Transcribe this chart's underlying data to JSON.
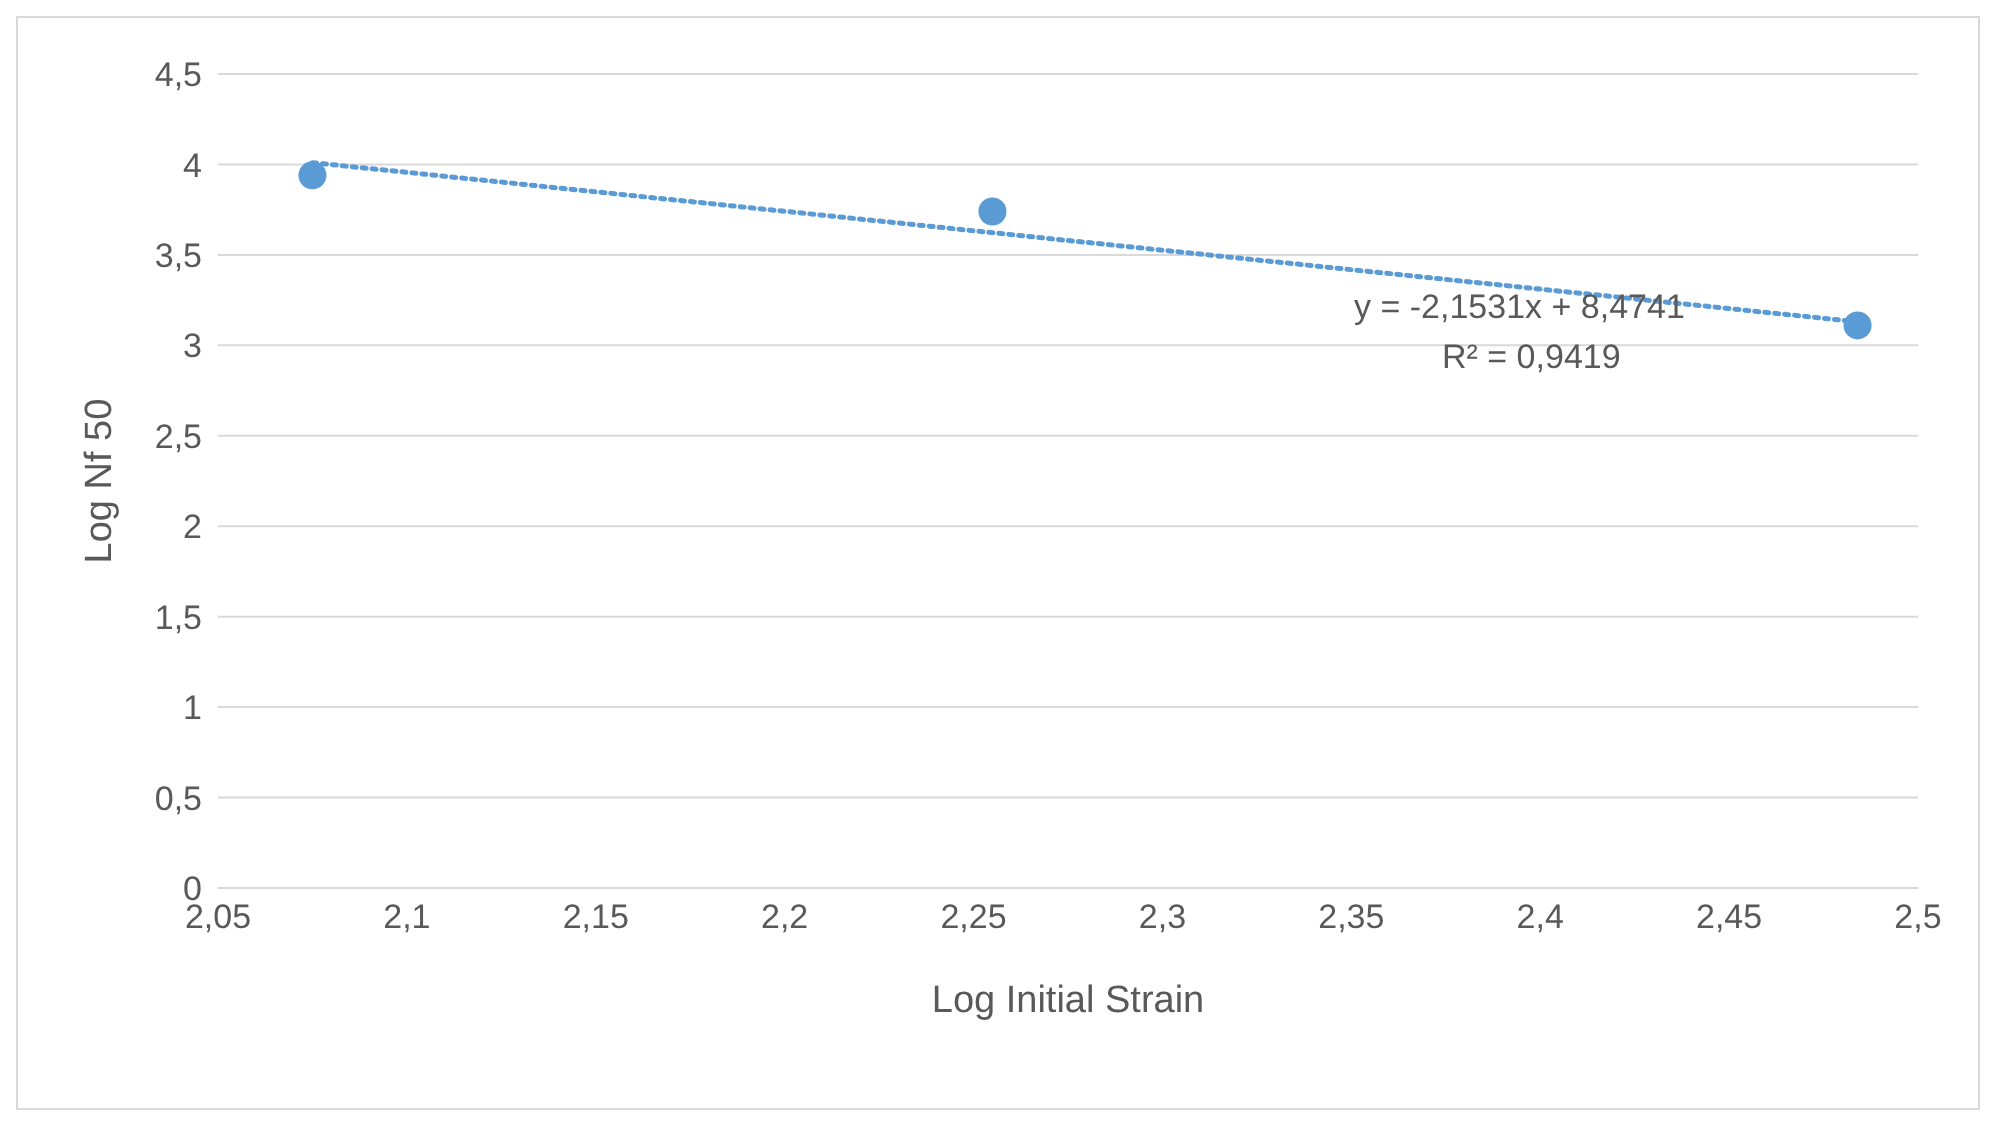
{
  "chart_data": {
    "type": "scatter",
    "xlabel": "Log Initial Strain",
    "ylabel": "Log Nf 50",
    "series": [
      {
        "color": "#5b9bd5",
        "x": [
          2.075,
          2.255,
          2.484
        ],
        "values": [
          3.94,
          3.74,
          3.11
        ],
        "marker": "circle"
      },
      {
        "type": "line",
        "color": "#5b9bd5",
        "x": [
          2.075,
          2.484
        ],
        "values": [
          4.01,
          3.13
        ],
        "line_style": "dotted",
        "marker": "none"
      }
    ],
    "xlim": [
      2.05,
      2.5
    ],
    "xticks": [
      {
        "value": 2.05,
        "label": "2,05"
      },
      {
        "value": 2.1,
        "label": "2,1"
      },
      {
        "value": 2.15,
        "label": "2,15"
      },
      {
        "value": 2.2,
        "label": "2,2"
      },
      {
        "value": 2.25,
        "label": "2,25"
      },
      {
        "value": 2.3,
        "label": "2,3"
      },
      {
        "value": 2.35,
        "label": "2,35"
      },
      {
        "value": 2.4,
        "label": "2,4"
      },
      {
        "value": 2.45,
        "label": "2,45"
      },
      {
        "value": 2.5,
        "label": "2,5"
      }
    ],
    "ylim": [
      0,
      4.5
    ],
    "yticks": [
      0,
      {
        "value": 0.5,
        "label": "0,5"
      },
      1,
      {
        "value": 1.5,
        "label": "1,5"
      },
      2,
      {
        "value": 2.5,
        "label": "2,5"
      },
      3,
      {
        "value": 3.5,
        "label": "3,5"
      },
      4,
      {
        "value": 4.5,
        "label": "4,5"
      }
    ],
    "grid": "y",
    "annotations": [
      "y = -2,1531x + 8,4741",
      "R² = 0,9419"
    ]
  }
}
